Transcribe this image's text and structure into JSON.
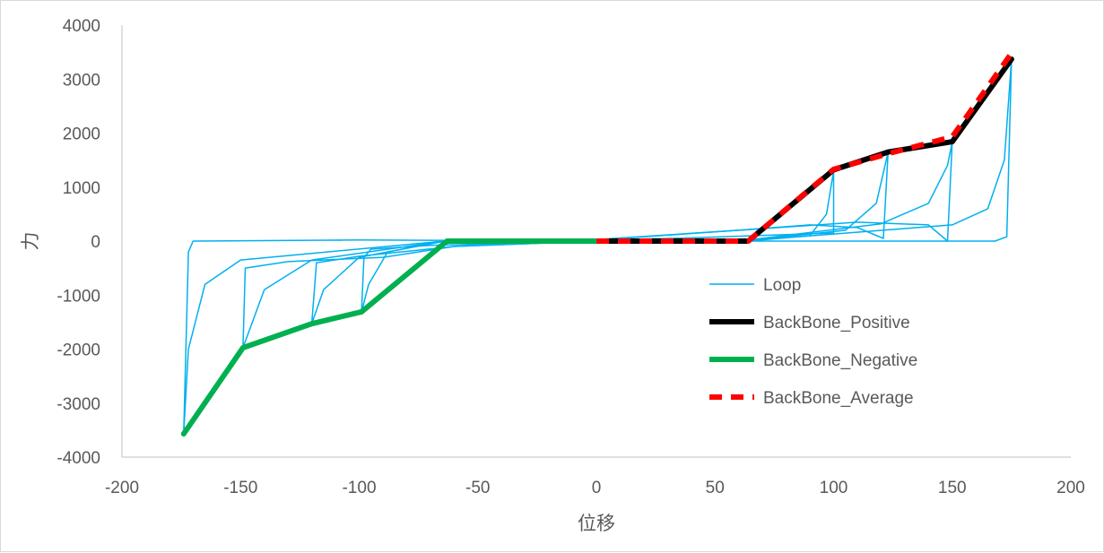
{
  "chart_data": {
    "type": "line",
    "title": "",
    "xlabel": "位移",
    "ylabel": "力",
    "xlim": [
      -200,
      200
    ],
    "ylim": [
      -4000,
      4000
    ],
    "xticks": [
      -200,
      -150,
      -100,
      -50,
      0,
      50,
      100,
      150,
      200
    ],
    "yticks": [
      -4000,
      -3000,
      -2000,
      -1000,
      0,
      1000,
      2000,
      3000,
      4000
    ],
    "grid": false,
    "legend_position": "center-right",
    "series": [
      {
        "name": "Loop",
        "color": "#00b0f0",
        "style": "solid",
        "loops": [
          [
            [
              0,
              0
            ],
            [
              64,
              0
            ],
            [
              90,
              100
            ],
            [
              97,
              500
            ],
            [
              100,
              1300
            ],
            [
              100,
              150
            ],
            [
              80,
              120
            ],
            [
              40,
              60
            ],
            [
              0,
              20
            ],
            [
              -64,
              0
            ],
            [
              -88,
              -200
            ],
            [
              -96,
              -800
            ],
            [
              -99,
              -1310
            ],
            [
              -98,
              -300
            ],
            [
              -95,
              -150
            ],
            [
              -70,
              -80
            ],
            [
              0,
              0
            ]
          ],
          [
            [
              0,
              0
            ],
            [
              64,
              10
            ],
            [
              105,
              200
            ],
            [
              118,
              700
            ],
            [
              123,
              1650
            ],
            [
              121,
              50
            ],
            [
              110,
              250
            ],
            [
              90,
              300
            ],
            [
              60,
              200
            ],
            [
              0,
              20
            ],
            [
              -64,
              0
            ],
            [
              -100,
              -300
            ],
            [
              -115,
              -900
            ],
            [
              -120,
              -1530
            ],
            [
              -118,
              -400
            ],
            [
              -100,
              -280
            ],
            [
              -60,
              -100
            ],
            [
              0,
              0
            ]
          ],
          [
            [
              0,
              0
            ],
            [
              64,
              20
            ],
            [
              120,
              320
            ],
            [
              140,
              700
            ],
            [
              148,
              1400
            ],
            [
              150,
              1840
            ],
            [
              148,
              0
            ],
            [
              140,
              300
            ],
            [
              110,
              350
            ],
            [
              60,
              200
            ],
            [
              0,
              30
            ],
            [
              -64,
              0
            ],
            [
              -120,
              -350
            ],
            [
              -140,
              -900
            ],
            [
              -149,
              -1975
            ],
            [
              -148,
              -500
            ],
            [
              -130,
              -380
            ],
            [
              -90,
              -300
            ],
            [
              -60,
              -100
            ],
            [
              0,
              0
            ]
          ],
          [
            [
              0,
              0
            ],
            [
              64,
              10
            ],
            [
              150,
              300
            ],
            [
              165,
              600
            ],
            [
              172,
              1500
            ],
            [
              175,
              3370
            ],
            [
              173,
              80
            ],
            [
              168,
              0
            ],
            [
              100,
              0
            ],
            [
              0,
              0
            ],
            [
              -64,
              0
            ],
            [
              -150,
              -350
            ],
            [
              -165,
              -800
            ],
            [
              -172,
              -2000
            ],
            [
              -174,
              -3570
            ],
            [
              -172,
              -200
            ],
            [
              -170,
              0
            ],
            [
              -100,
              20
            ],
            [
              0,
              0
            ]
          ]
        ]
      },
      {
        "name": "BackBone_Positive",
        "color": "#000000",
        "style": "solid",
        "points": [
          [
            0,
            0
          ],
          [
            64,
            0
          ],
          [
            100,
            1320
          ],
          [
            123,
            1650
          ],
          [
            150,
            1840
          ],
          [
            175,
            3370
          ]
        ]
      },
      {
        "name": "BackBone_Negative",
        "color": "#00b050",
        "style": "solid",
        "points": [
          [
            0,
            0
          ],
          [
            -63,
            0
          ],
          [
            -73,
            -365
          ],
          [
            -99,
            -1310
          ],
          [
            -120,
            -1530
          ],
          [
            -149,
            -1975
          ],
          [
            -174,
            -3570
          ]
        ]
      },
      {
        "name": "BackBone_Average",
        "color": "#ff0000",
        "style": "dashed",
        "points": [
          [
            0,
            0
          ],
          [
            64,
            0
          ],
          [
            100,
            1330
          ],
          [
            123,
            1620
          ],
          [
            150,
            1930
          ],
          [
            175,
            3480
          ]
        ]
      }
    ]
  }
}
